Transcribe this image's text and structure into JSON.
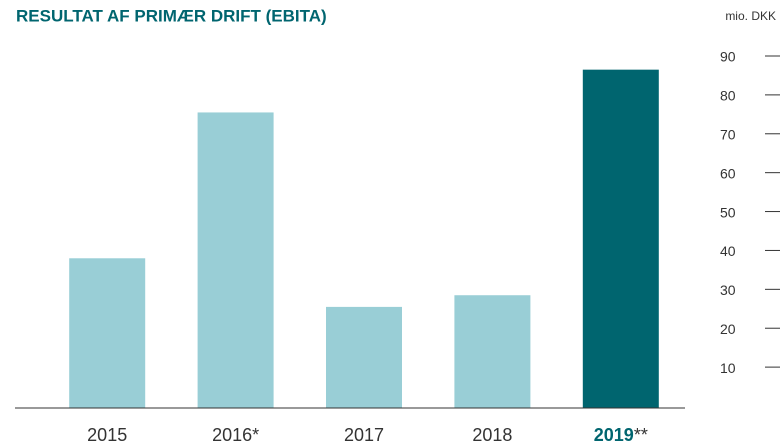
{
  "chart_data": {
    "type": "bar",
    "title": "RESULTAT AF PRIMÆR DRIFT (EBITA)",
    "y_axis_label": "mio. DKK",
    "categories": [
      "2015",
      "2016*",
      "2017",
      "2018",
      "2019**"
    ],
    "values": [
      38.5,
      76,
      26,
      29,
      87
    ],
    "color": "#99ced6",
    "highlight_color": "#00656f",
    "highlight_index": 4,
    "ylim": [
      0,
      90
    ],
    "yticks": [
      10,
      20,
      30,
      40,
      50,
      60,
      70,
      80,
      90
    ],
    "axis_side": "right"
  }
}
